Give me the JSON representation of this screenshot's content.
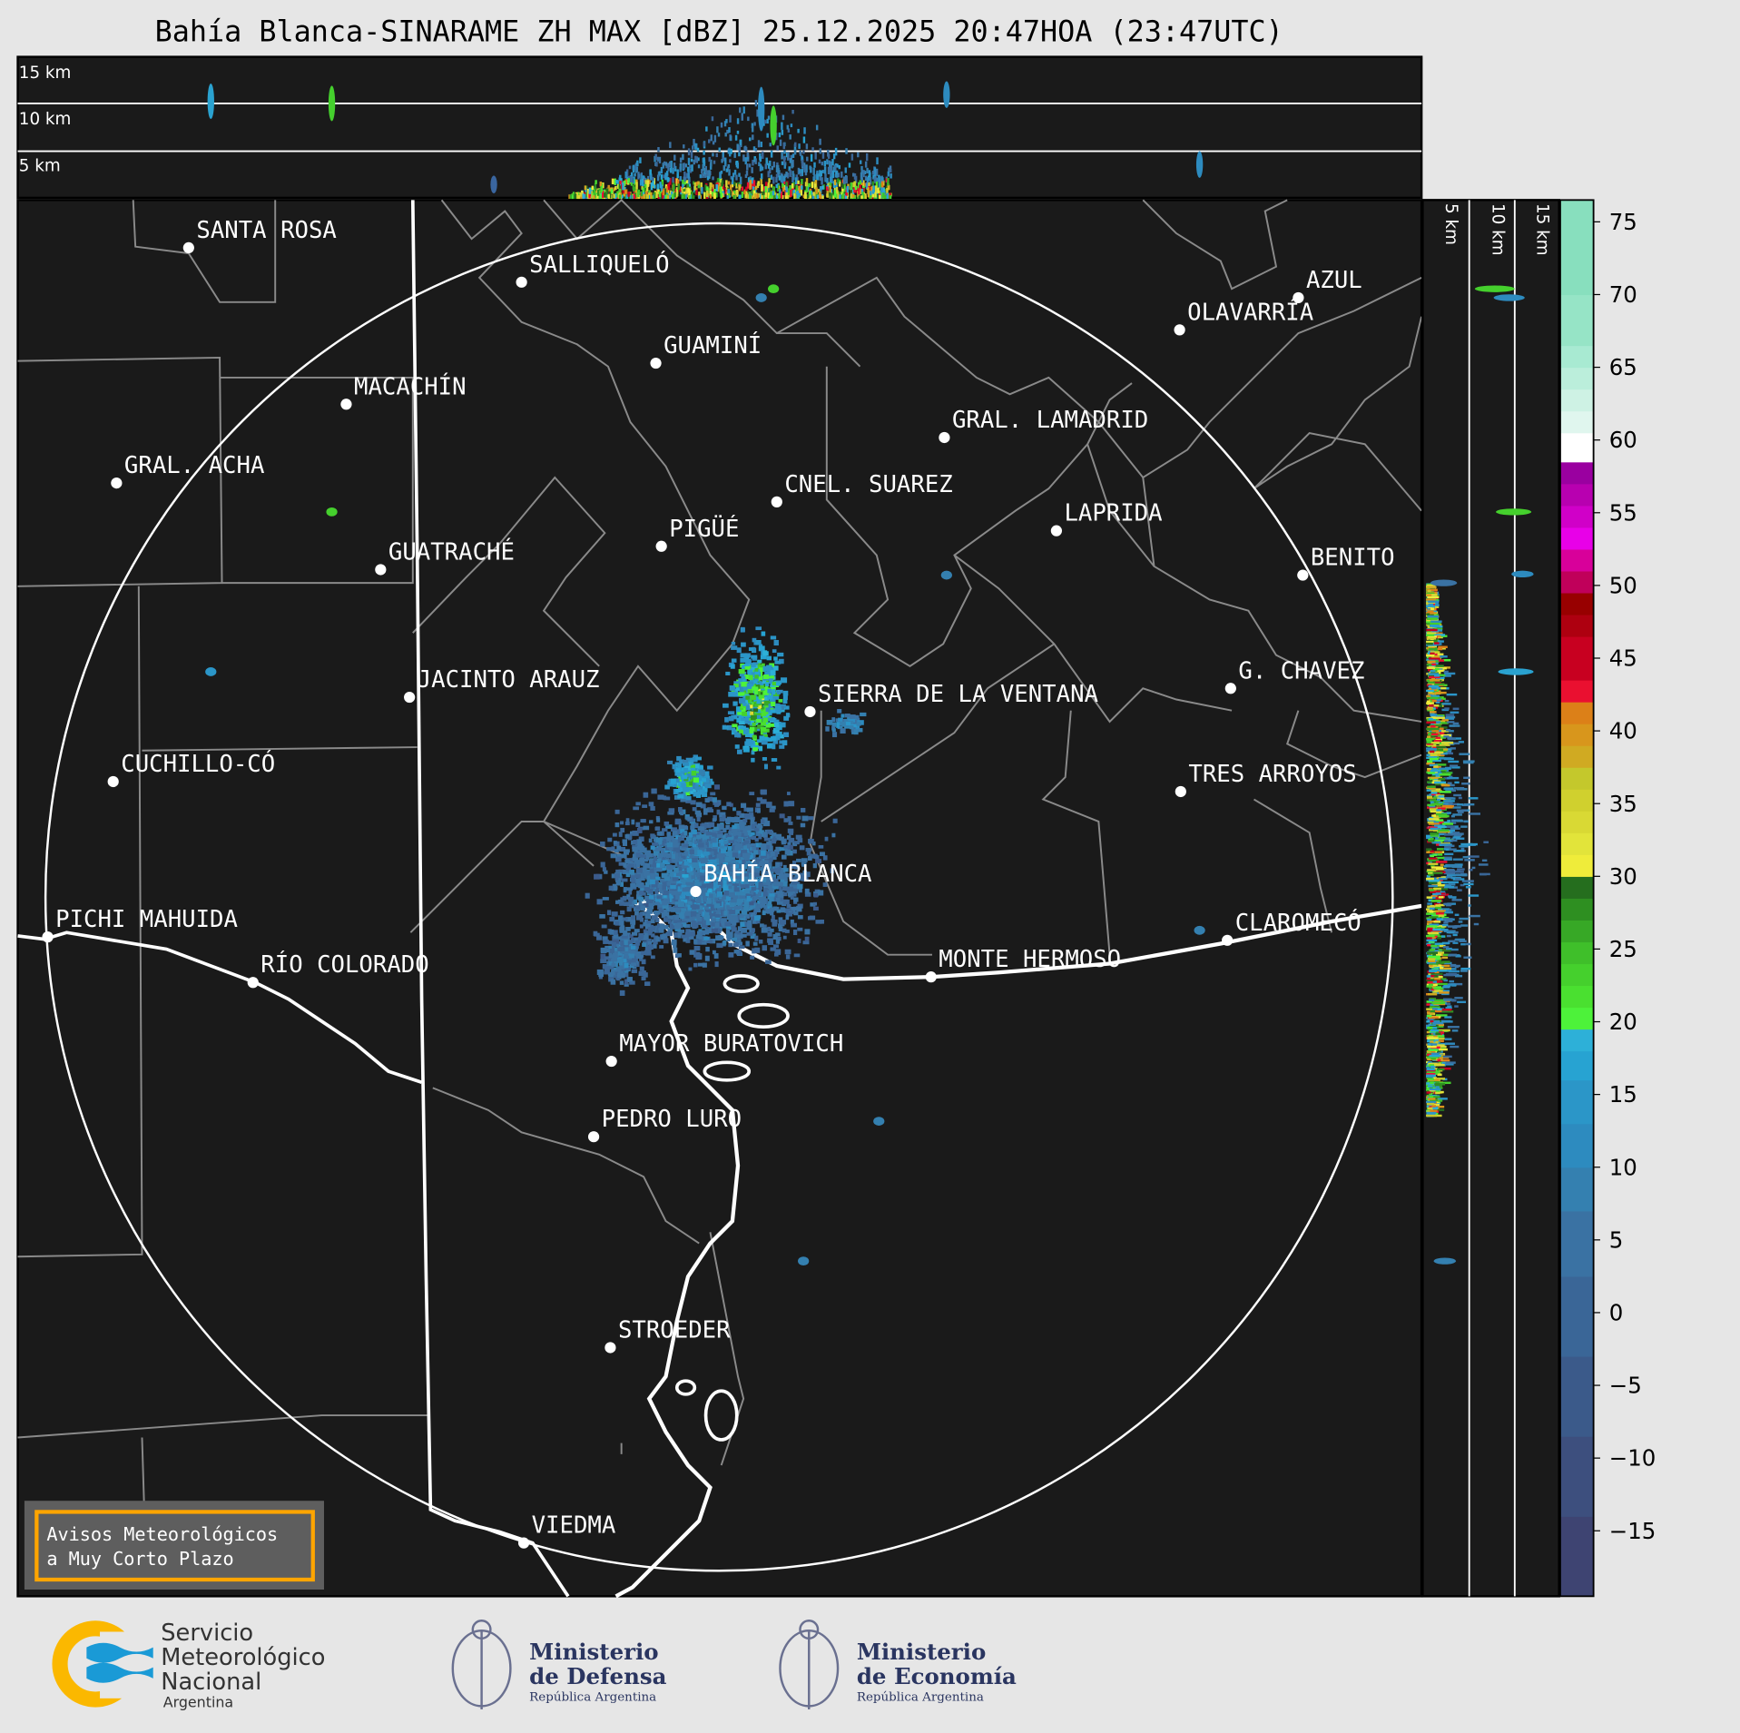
{
  "title": "Bahía Blanca-SINARAME ZH MAX [dBZ] 25.12.2025 20:47HOA (23:47UTC)",
  "top_panel": {
    "height_labels": [
      "15 km",
      "10 km",
      "5 km"
    ]
  },
  "side_panel": {
    "height_labels": [
      "5 km",
      "10 km",
      "15 km"
    ]
  },
  "cities": [
    "SANTA ROSA",
    "SALLIQUELÓ",
    "GUAMINÍ",
    "MACACHÍN",
    "GRAL. ACHA",
    "GRAL. LAMADRID",
    "CNEL. SUAREZ",
    "LAPRIDA",
    "PIGÜÉ",
    "GUATRACHÉ",
    "BENITO",
    "AZUL",
    "OLAVARRÍA",
    "G. CHAVEZ",
    "SIERRA DE LA VENTANA",
    "JACINTO ARAUZ",
    "CUCHILLO-CÓ",
    "TRES ARROYOS",
    "BAHÍA BLANCA",
    "PICHI MAHUIDA",
    "CLAROMECÓ",
    "MONTE HERMOSO",
    "RÍO COLORADO",
    "MAYOR BURATOVICH",
    "PEDRO LURO",
    "STROEDER",
    "VIEDMA"
  ],
  "colorbar": {
    "unit": "dBZ",
    "range": [
      -19.5,
      76.5
    ],
    "ticks": [
      "75",
      "70",
      "65",
      "60",
      "55",
      "50",
      "45",
      "40",
      "35",
      "30",
      "25",
      "20",
      "15",
      "10",
      "5",
      "0",
      "−5",
      "−10",
      "−15"
    ],
    "bands": [
      {
        "from": -19.5,
        "to": -14,
        "color": "#3e4472"
      },
      {
        "from": -14,
        "to": -8.5,
        "color": "#3d4f7e"
      },
      {
        "from": -8.5,
        "to": -3,
        "color": "#3b5a8a"
      },
      {
        "from": -3,
        "to": 2.5,
        "color": "#3a6697"
      },
      {
        "from": 2.5,
        "to": 7,
        "color": "#3a72a3"
      },
      {
        "from": 7,
        "to": 10,
        "color": "#3480b0"
      },
      {
        "from": 10,
        "to": 13,
        "color": "#2d8bbf"
      },
      {
        "from": 13,
        "to": 16,
        "color": "#2b96c8"
      },
      {
        "from": 16,
        "to": 18,
        "color": "#27a3d2"
      },
      {
        "from": 18,
        "to": 19.5,
        "color": "#2db0d8"
      },
      {
        "from": 19.5,
        "to": 21,
        "color": "#4df23a"
      },
      {
        "from": 21,
        "to": 22.5,
        "color": "#4ae030"
      },
      {
        "from": 22.5,
        "to": 24,
        "color": "#45d02d"
      },
      {
        "from": 24,
        "to": 25.5,
        "color": "#3fbf2a"
      },
      {
        "from": 25.5,
        "to": 27,
        "color": "#37a826"
      },
      {
        "from": 27,
        "to": 28.5,
        "color": "#2e8f21"
      },
      {
        "from": 28.5,
        "to": 30,
        "color": "#256e1e"
      },
      {
        "from": 30,
        "to": 31.5,
        "color": "#efec3a"
      },
      {
        "from": 31.5,
        "to": 33,
        "color": "#e2e43a"
      },
      {
        "from": 33,
        "to": 34.5,
        "color": "#d9d934"
      },
      {
        "from": 34.5,
        "to": 36,
        "color": "#d0d02e"
      },
      {
        "from": 36,
        "to": 37.5,
        "color": "#c4c82c"
      },
      {
        "from": 37.5,
        "to": 39,
        "color": "#d0aa22"
      },
      {
        "from": 39,
        "to": 40.5,
        "color": "#d8961c"
      },
      {
        "from": 40.5,
        "to": 42,
        "color": "#dc8018"
      },
      {
        "from": 42,
        "to": 43.5,
        "color": "#ea1030"
      },
      {
        "from": 43.5,
        "to": 46.5,
        "color": "#c80020"
      },
      {
        "from": 46.5,
        "to": 48,
        "color": "#ae0010"
      },
      {
        "from": 48,
        "to": 49.5,
        "color": "#980000"
      },
      {
        "from": 49.5,
        "to": 51,
        "color": "#c0005a"
      },
      {
        "from": 51,
        "to": 52.5,
        "color": "#d8009a"
      },
      {
        "from": 52.5,
        "to": 54,
        "color": "#e800e8"
      },
      {
        "from": 54,
        "to": 55.5,
        "color": "#d000c8"
      },
      {
        "from": 55.5,
        "to": 57,
        "color": "#b800b0"
      },
      {
        "from": 57,
        "to": 58.5,
        "color": "#9a00a0"
      },
      {
        "from": 58.5,
        "to": 60.5,
        "color": "#ffffff"
      },
      {
        "from": 60.5,
        "to": 62,
        "color": "#e0f6ee"
      },
      {
        "from": 62,
        "to": 63.5,
        "color": "#cef2e4"
      },
      {
        "from": 63.5,
        "to": 65,
        "color": "#bbeedb"
      },
      {
        "from": 65,
        "to": 66.5,
        "color": "#a8ead2"
      },
      {
        "from": 66.5,
        "to": 70,
        "color": "#96e4c6"
      },
      {
        "from": 70,
        "to": 76.5,
        "color": "#88dfbe"
      }
    ]
  },
  "badge": {
    "line1": "Avisos Meteorológicos",
    "line2": "a Muy Corto Plazo",
    "border_color": "#ffa500"
  },
  "footer": {
    "smn": {
      "line1": "Servicio",
      "line2": "Meteorológico",
      "line3": "Nacional",
      "line4": "Argentina"
    },
    "defensa": {
      "line1": "Ministerio",
      "line2": "de Defensa",
      "line3": "República Argentina"
    },
    "economia": {
      "line1": "Ministerio",
      "line2": "de Economía",
      "line3": "República Argentina"
    }
  },
  "colors": {
    "background": "#e6e6e6",
    "map": "#1a1a1a",
    "accent_orange": "#ffa500",
    "smn_blue": "#1a9ad6",
    "smn_yellow": "#fbb800",
    "ministry_navy": "#2a3560"
  }
}
